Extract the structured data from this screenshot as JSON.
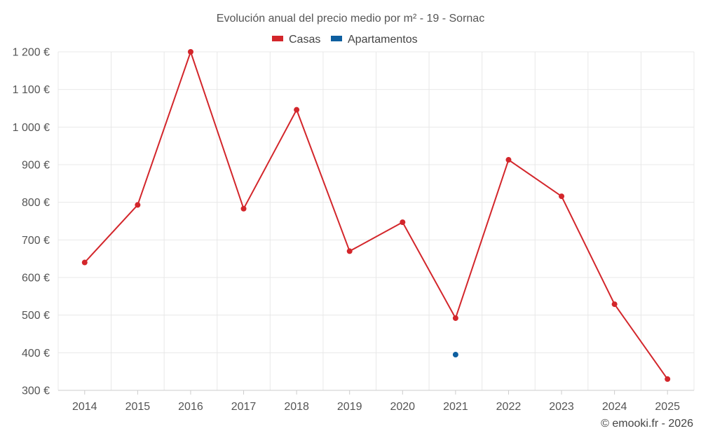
{
  "chart_data": {
    "type": "line",
    "title": "Evolución anual del precio medio por m² - 19 - Sornac",
    "categories": [
      "2014",
      "2015",
      "2016",
      "2017",
      "2018",
      "2019",
      "2020",
      "2021",
      "2022",
      "2023",
      "2024",
      "2025"
    ],
    "series": [
      {
        "name": "Casas",
        "color": "#d3262b",
        "values": [
          640,
          793,
          1200,
          783,
          1046,
          670,
          747,
          492,
          913,
          816,
          529,
          330
        ]
      },
      {
        "name": "Apartamentos",
        "color": "#0e5fa0",
        "values": [
          null,
          null,
          null,
          null,
          null,
          null,
          null,
          395,
          null,
          null,
          null,
          null
        ]
      }
    ],
    "ylim": [
      300,
      1200
    ],
    "yticks": [
      300,
      400,
      500,
      600,
      700,
      800,
      900,
      1000,
      1100,
      1200
    ],
    "ytick_labels": [
      "300 €",
      "400 €",
      "500 €",
      "600 €",
      "700 €",
      "800 €",
      "900 €",
      "1 000 €",
      "1 100 €",
      "1 200 €"
    ],
    "grid": true,
    "legend_position": "top-center",
    "xlabel": "",
    "ylabel": ""
  },
  "credit": "© emooki.fr - 2026"
}
